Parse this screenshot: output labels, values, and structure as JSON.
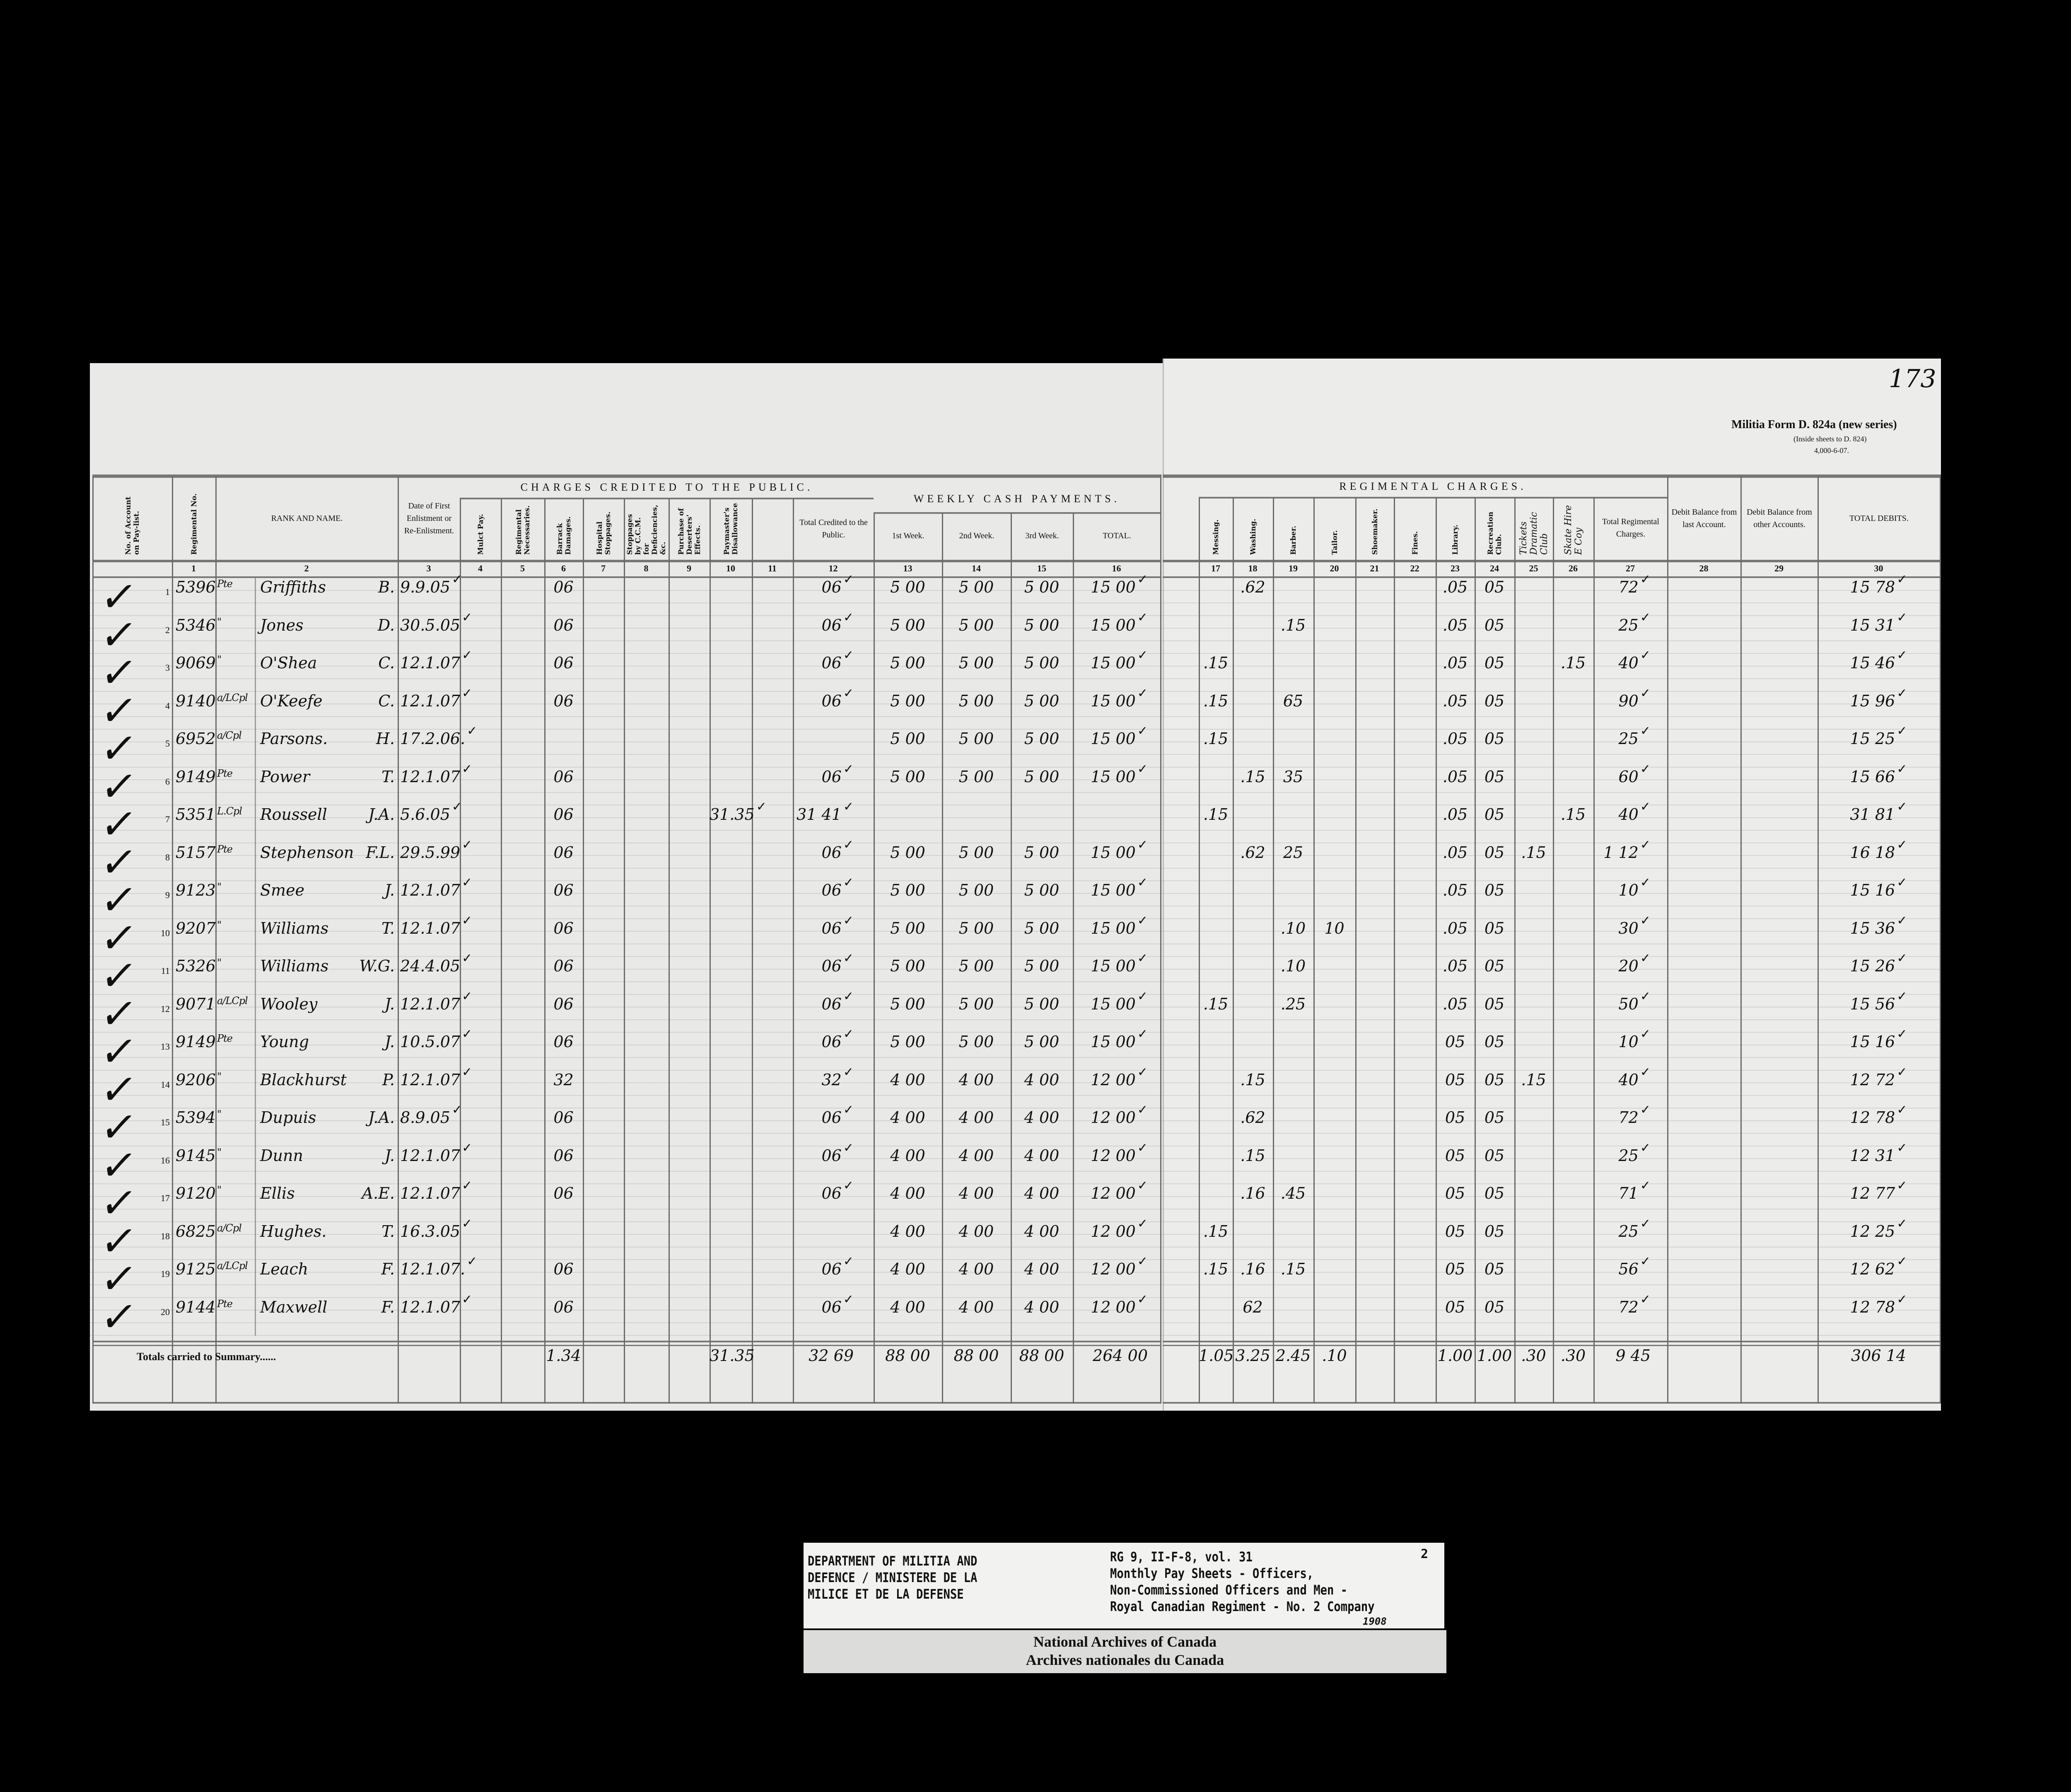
{
  "document": {
    "page_number": "173",
    "form_title": "Militia Form D. 824a (new series)",
    "form_subtitle": "(Inside sheets to D. 824)",
    "form_print": "4,000-6-07."
  },
  "headers": {
    "charges_group": "CHARGES CREDITED TO THE PUBLIC.",
    "weekly_group": "WEEKLY CASH PAYMENTS.",
    "regimental_group": "REGIMENTAL CHARGES.",
    "columns": [
      {
        "num": "",
        "label": "No. of Account on Pay-list."
      },
      {
        "num": "1",
        "label": "Regimental No."
      },
      {
        "num": "2",
        "label": "RANK AND NAME."
      },
      {
        "num": "3",
        "label": "Date of First Enlistment or Re-Enlistment."
      },
      {
        "num": "4",
        "label": "Mulct Pay."
      },
      {
        "num": "5",
        "label": "Regimental Necessaries."
      },
      {
        "num": "6",
        "label": "Barrack Damages."
      },
      {
        "num": "7",
        "label": "Hospital Stoppages."
      },
      {
        "num": "8",
        "label": "Stoppages by C.C.M. for Deficiencies, &c."
      },
      {
        "num": "9",
        "label": "Purchase of Deserters' Effects."
      },
      {
        "num": "10",
        "label": "Paymaster's Disallowance."
      },
      {
        "num": "11",
        "label": ""
      },
      {
        "num": "12",
        "label": "Total Credited to the Public."
      },
      {
        "num": "13",
        "label": "1st Week."
      },
      {
        "num": "14",
        "label": "2nd Week."
      },
      {
        "num": "15",
        "label": "3rd Week."
      },
      {
        "num": "16",
        "label": "TOTAL."
      },
      {
        "num": "17",
        "label": "Messing."
      },
      {
        "num": "18",
        "label": "Washing."
      },
      {
        "num": "19",
        "label": "Barber."
      },
      {
        "num": "20",
        "label": "Tailor."
      },
      {
        "num": "21",
        "label": "Shoemaker."
      },
      {
        "num": "22",
        "label": "Fines."
      },
      {
        "num": "23",
        "label": "Library."
      },
      {
        "num": "24",
        "label": "Recreation Club."
      },
      {
        "num": "25",
        "label": "Tickets Dramatic Club"
      },
      {
        "num": "26",
        "label": "Skate Hire E Coy"
      },
      {
        "num": "27",
        "label": "Total Regimental Charges."
      },
      {
        "num": "28",
        "label": "Debit Balance from last Account."
      },
      {
        "num": "29",
        "label": "Debit Balance from other Accounts."
      },
      {
        "num": "30",
        "label": "TOTAL DEBITS."
      }
    ]
  },
  "rows": [
    {
      "n": "1",
      "reg": "5396",
      "rank": "Pte",
      "name": "Griffiths",
      "initials": "B.",
      "date": "9.9.05",
      "c6": "06",
      "c10": "",
      "c12": "06",
      "c13": "5 00",
      "c14": "5 00",
      "c15": "5 00",
      "c16": "15 00",
      "c17": "",
      "c18": ".62",
      "c19": "",
      "c20": "",
      "c23": ".05",
      "c24": "05",
      "c25": "",
      "c26": "",
      "c27": "72",
      "c30": "15 78"
    },
    {
      "n": "2",
      "reg": "5346",
      "rank": "\"",
      "name": "Jones",
      "initials": "D.",
      "date": "30.5.05",
      "c6": "06",
      "c10": "",
      "c12": "06",
      "c13": "5 00",
      "c14": "5 00",
      "c15": "5 00",
      "c16": "15 00",
      "c17": "",
      "c18": "",
      "c19": ".15",
      "c20": "",
      "c23": ".05",
      "c24": "05",
      "c25": "",
      "c26": "",
      "c27": "25",
      "c30": "15 31"
    },
    {
      "n": "3",
      "reg": "9069",
      "rank": "\"",
      "name": "O'Shea",
      "initials": "C.",
      "date": "12.1.07",
      "c6": "06",
      "c10": "",
      "c12": "06",
      "c13": "5 00",
      "c14": "5 00",
      "c15": "5 00",
      "c16": "15 00",
      "c17": ".15",
      "c18": "",
      "c19": "",
      "c20": "",
      "c23": ".05",
      "c24": "05",
      "c25": "",
      "c26": ".15",
      "c27": "40",
      "c30": "15 46"
    },
    {
      "n": "4",
      "reg": "9140",
      "rank": "a/LCpl",
      "name": "O'Keefe",
      "initials": "C.",
      "date": "12.1.07",
      "c6": "06",
      "c10": "",
      "c12": "06",
      "c13": "5 00",
      "c14": "5 00",
      "c15": "5 00",
      "c16": "15 00",
      "c17": ".15",
      "c18": "",
      "c19": "65",
      "c20": "",
      "c23": ".05",
      "c24": "05",
      "c25": "",
      "c26": "",
      "c27": "90",
      "c30": "15 96"
    },
    {
      "n": "5",
      "reg": "6952",
      "rank": "a/Cpl",
      "name": "Parsons.",
      "initials": "H.",
      "date": "17.2.06.",
      "c6": "",
      "c10": "",
      "c12": "",
      "c13": "5 00",
      "c14": "5 00",
      "c15": "5 00",
      "c16": "15 00",
      "c17": ".15",
      "c18": "",
      "c19": "",
      "c20": "",
      "c23": ".05",
      "c24": "05",
      "c25": "",
      "c26": "",
      "c27": "25",
      "c30": "15 25"
    },
    {
      "n": "6",
      "reg": "9149",
      "rank": "Pte",
      "name": "Power",
      "initials": "T.",
      "date": "12.1.07",
      "c6": "06",
      "c10": "",
      "c12": "06",
      "c13": "5 00",
      "c14": "5 00",
      "c15": "5 00",
      "c16": "15 00",
      "c17": "",
      "c18": ".15",
      "c19": "35",
      "c20": "",
      "c23": ".05",
      "c24": "05",
      "c25": "",
      "c26": "",
      "c27": "60",
      "c30": "15 66"
    },
    {
      "n": "7",
      "reg": "5351",
      "rank": "L.Cpl",
      "name": "Roussell",
      "initials": "J.A.",
      "date": "5.6.05",
      "c6": "06",
      "c10": "31.35",
      "c12": "31 41",
      "c13": "",
      "c14": "",
      "c15": "",
      "c16": "",
      "c17": ".15",
      "c18": "",
      "c19": "",
      "c20": "",
      "c23": ".05",
      "c24": "05",
      "c25": "",
      "c26": ".15",
      "c27": "40",
      "c30": "31 81"
    },
    {
      "n": "8",
      "reg": "5157",
      "rank": "Pte",
      "name": "Stephenson",
      "initials": "F.L.",
      "date": "29.5.99",
      "c6": "06",
      "c10": "",
      "c12": "06",
      "c13": "5 00",
      "c14": "5 00",
      "c15": "5 00",
      "c16": "15 00",
      "c17": "",
      "c18": ".62",
      "c19": "25",
      "c20": "",
      "c23": ".05",
      "c24": "05",
      "c25": ".15",
      "c26": "",
      "c27": "1 12",
      "c30": "16 18"
    },
    {
      "n": "9",
      "reg": "9123",
      "rank": "\"",
      "name": "Smee",
      "initials": "J.",
      "date": "12.1.07",
      "c6": "06",
      "c10": "",
      "c12": "06",
      "c13": "5 00",
      "c14": "5 00",
      "c15": "5 00",
      "c16": "15 00",
      "c17": "",
      "c18": "",
      "c19": "",
      "c20": "",
      "c23": ".05",
      "c24": "05",
      "c25": "",
      "c26": "",
      "c27": "10",
      "c30": "15 16"
    },
    {
      "n": "10",
      "reg": "9207",
      "rank": "\"",
      "name": "Williams",
      "initials": "T.",
      "date": "12.1.07",
      "c6": "06",
      "c10": "",
      "c12": "06",
      "c13": "5 00",
      "c14": "5 00",
      "c15": "5 00",
      "c16": "15 00",
      "c17": "",
      "c18": "",
      "c19": ".10",
      "c20": "10",
      "c23": ".05",
      "c24": "05",
      "c25": "",
      "c26": "",
      "c27": "30",
      "c30": "15 36"
    },
    {
      "n": "11",
      "reg": "5326",
      "rank": "\"",
      "name": "Williams",
      "initials": "W.G.",
      "date": "24.4.05",
      "c6": "06",
      "c10": "",
      "c12": "06",
      "c13": "5 00",
      "c14": "5 00",
      "c15": "5 00",
      "c16": "15 00",
      "c17": "",
      "c18": "",
      "c19": ".10",
      "c20": "",
      "c23": ".05",
      "c24": "05",
      "c25": "",
      "c26": "",
      "c27": "20",
      "c30": "15 26"
    },
    {
      "n": "12",
      "reg": "9071",
      "rank": "a/LCpl",
      "name": "Wooley",
      "initials": "J.",
      "date": "12.1.07",
      "c6": "06",
      "c10": "",
      "c12": "06",
      "c13": "5 00",
      "c14": "5 00",
      "c15": "5 00",
      "c16": "15 00",
      "c17": ".15",
      "c18": "",
      "c19": ".25",
      "c20": "",
      "c23": ".05",
      "c24": "05",
      "c25": "",
      "c26": "",
      "c27": "50",
      "c30": "15 56"
    },
    {
      "n": "13",
      "reg": "9149",
      "rank": "Pte",
      "name": "Young",
      "initials": "J.",
      "date": "10.5.07",
      "c6": "06",
      "c10": "",
      "c12": "06",
      "c13": "5 00",
      "c14": "5 00",
      "c15": "5 00",
      "c16": "15 00",
      "c17": "",
      "c18": "",
      "c19": "",
      "c20": "",
      "c23": "05",
      "c24": "05",
      "c25": "",
      "c26": "",
      "c27": "10",
      "c30": "15 16"
    },
    {
      "n": "14",
      "reg": "9206",
      "rank": "\"",
      "name": "Blackhurst",
      "initials": "P.",
      "date": "12.1.07",
      "c6": "32",
      "c10": "",
      "c12": "32",
      "c13": "4 00",
      "c14": "4 00",
      "c15": "4 00",
      "c16": "12 00",
      "c17": "",
      "c18": ".15",
      "c19": "",
      "c20": "",
      "c23": "05",
      "c24": "05",
      "c25": ".15",
      "c26": "",
      "c27": "40",
      "c30": "12 72"
    },
    {
      "n": "15",
      "reg": "5394",
      "rank": "\"",
      "name": "Dupuis",
      "initials": "J.A.",
      "date": "8.9.05",
      "c6": "06",
      "c10": "",
      "c12": "06",
      "c13": "4 00",
      "c14": "4 00",
      "c15": "4 00",
      "c16": "12 00",
      "c17": "",
      "c18": ".62",
      "c19": "",
      "c20": "",
      "c23": "05",
      "c24": "05",
      "c25": "",
      "c26": "",
      "c27": "72",
      "c30": "12 78"
    },
    {
      "n": "16",
      "reg": "9145",
      "rank": "\"",
      "name": "Dunn",
      "initials": "J.",
      "date": "12.1.07",
      "c6": "06",
      "c10": "",
      "c12": "06",
      "c13": "4 00",
      "c14": "4 00",
      "c15": "4 00",
      "c16": "12 00",
      "c17": "",
      "c18": ".15",
      "c19": "",
      "c20": "",
      "c23": "05",
      "c24": "05",
      "c25": "",
      "c26": "",
      "c27": "25",
      "c30": "12 31"
    },
    {
      "n": "17",
      "reg": "9120",
      "rank": "\"",
      "name": "Ellis",
      "initials": "A.E.",
      "date": "12.1.07",
      "c6": "06",
      "c10": "",
      "c12": "06",
      "c13": "4 00",
      "c14": "4 00",
      "c15": "4 00",
      "c16": "12 00",
      "c17": "",
      "c18": ".16",
      "c19": ".45",
      "c20": "",
      "c23": "05",
      "c24": "05",
      "c25": "",
      "c26": "",
      "c27": "71",
      "c30": "12 77"
    },
    {
      "n": "18",
      "reg": "6825",
      "rank": "a/Cpl",
      "name": "Hughes.",
      "initials": "T.",
      "date": "16.3.05",
      "c6": "",
      "c10": "",
      "c12": "",
      "c13": "4 00",
      "c14": "4 00",
      "c15": "4 00",
      "c16": "12 00",
      "c17": ".15",
      "c18": "",
      "c19": "",
      "c20": "",
      "c23": "05",
      "c24": "05",
      "c25": "",
      "c26": "",
      "c27": "25",
      "c30": "12 25"
    },
    {
      "n": "19",
      "reg": "9125",
      "rank": "a/LCpl",
      "name": "Leach",
      "initials": "F.",
      "date": "12.1.07.",
      "c6": "06",
      "c10": "",
      "c12": "06",
      "c13": "4 00",
      "c14": "4 00",
      "c15": "4 00",
      "c16": "12 00",
      "c17": ".15",
      "c18": ".16",
      "c19": ".15",
      "c20": "",
      "c23": "05",
      "c24": "05",
      "c25": "",
      "c26": "",
      "c27": "56",
      "c30": "12 62"
    },
    {
      "n": "20",
      "reg": "9144",
      "rank": "Pte",
      "name": "Maxwell",
      "initials": "F.",
      "date": "12.1.07",
      "c6": "06",
      "c10": "",
      "c12": "06",
      "c13": "4 00",
      "c14": "4 00",
      "c15": "4 00",
      "c16": "12 00",
      "c17": "",
      "c18": "62",
      "c19": "",
      "c20": "",
      "c23": "05",
      "c24": "05",
      "c25": "",
      "c26": "",
      "c27": "72",
      "c30": "12 78"
    }
  ],
  "totals": {
    "label": "Totals carried to Summary......",
    "c6": "1.34",
    "c10": "31.35",
    "c12": "32 69",
    "c13": "88 00",
    "c14": "88 00",
    "c15": "88 00",
    "c16": "264 00",
    "c17": "1.05",
    "c18": "3.25",
    "c19": "2.45",
    "c20": ".10",
    "c23": "1.00",
    "c24": "1.00",
    "c25": ".30",
    "c26": ".30",
    "c27": "9 45",
    "c30": "306 14"
  },
  "archive_label": {
    "department": "DEPARTMENT OF MILITIA AND\nDEFENCE / MINISTERE DE LA\nMILICE ET DE LA DEFENSE",
    "reference": "RG 9, II-F-8, vol. 31\nMonthly Pay Sheets - Officers,\nNon-Commissioned Officers and Men -\nRoyal Canadian Regiment - No. 2 Company",
    "year": "1908",
    "sheet_number": "2",
    "archives_en": "National Archives of Canada",
    "archives_fr": "Archives nationales du Canada"
  }
}
